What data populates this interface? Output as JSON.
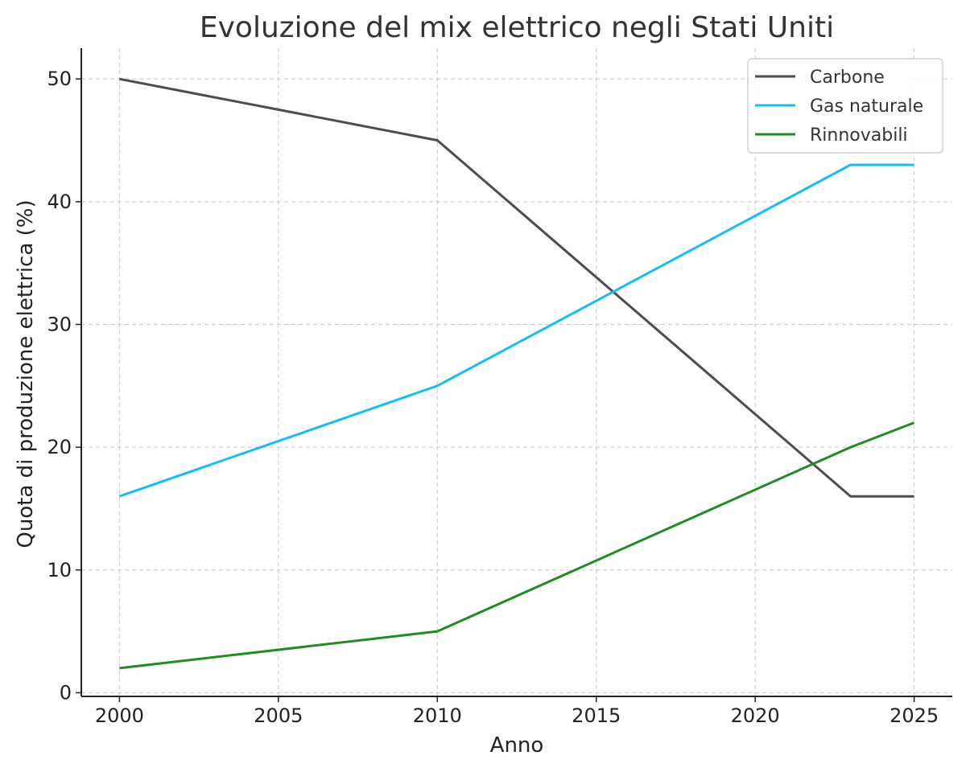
{
  "chart_data": {
    "type": "line",
    "title": "Evoluzione del mix elettrico negli Stati Uniti",
    "xlabel": "Anno",
    "ylabel": "Quota di produzione elettrica (%)",
    "x": [
      2000,
      2010,
      2023,
      2025
    ],
    "xlim": [
      1998.8,
      2026.2
    ],
    "ylim": [
      -0.3,
      52.5
    ],
    "xticks": [
      2000,
      2005,
      2010,
      2015,
      2020,
      2025
    ],
    "yticks": [
      0,
      10,
      20,
      30,
      40,
      50
    ],
    "grid": true,
    "legend_position": "top-right",
    "series": [
      {
        "name": "Carbone",
        "color": "#4d4d4d",
        "values": [
          50,
          45,
          16,
          16
        ]
      },
      {
        "name": "Gas naturale",
        "color": "#17bcf0",
        "values": [
          16,
          25,
          43,
          43
        ]
      },
      {
        "name": "Rinnovabili",
        "color": "#228b22",
        "values": [
          2,
          5,
          20,
          22
        ]
      }
    ]
  }
}
